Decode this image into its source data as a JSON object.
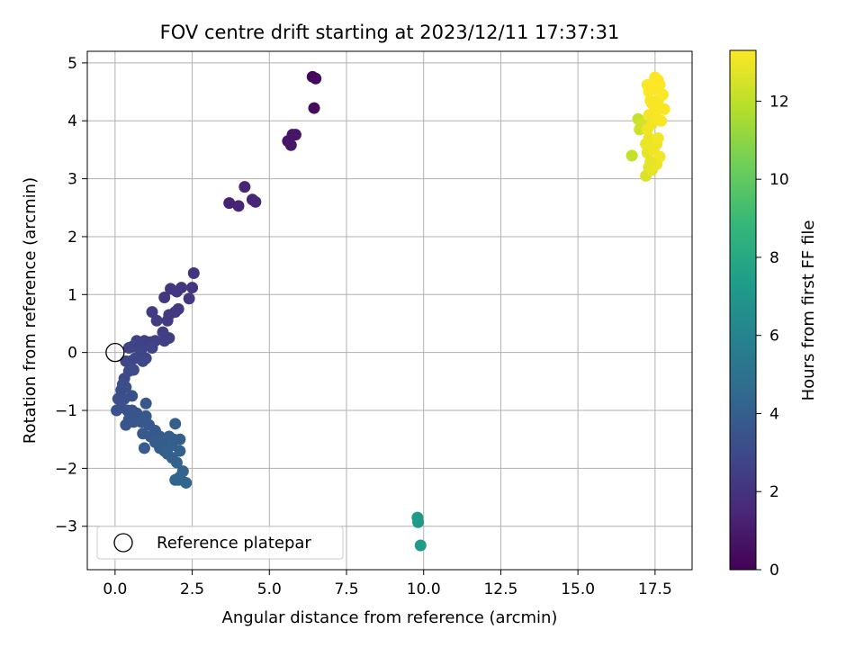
{
  "chart_data": {
    "type": "scatter",
    "title": "FOV centre drift starting at 2023/12/11 17:37:31",
    "xlabel": "Angular distance from reference (arcmin)",
    "ylabel": "Rotation from reference (arcmin)",
    "xlim": [
      -0.9,
      18.7
    ],
    "ylim": [
      -3.75,
      5.2
    ],
    "xticks": [
      0.0,
      2.5,
      5.0,
      7.5,
      10.0,
      12.5,
      15.0,
      17.5
    ],
    "xtick_labels": [
      "0.0",
      "2.5",
      "5.0",
      "7.5",
      "10.0",
      "12.5",
      "15.0",
      "17.5"
    ],
    "yticks": [
      -3,
      -2,
      -1,
      0,
      1,
      2,
      3,
      4,
      5
    ],
    "ytick_labels": [
      "−3",
      "−2",
      "−1",
      "0",
      "1",
      "2",
      "3",
      "4",
      "5"
    ],
    "grid": true,
    "colormap": "viridis",
    "colormap_stops": [
      "#440154",
      "#482878",
      "#3e4989",
      "#31688e",
      "#26828e",
      "#1f9e89",
      "#35b779",
      "#6ece58",
      "#b5de2b",
      "#fde725"
    ],
    "colorbar": {
      "label": "Hours from first FF file",
      "range": [
        0,
        13.3
      ],
      "ticks": [
        0,
        2,
        4,
        6,
        8,
        10,
        12
      ],
      "tick_labels": [
        "0",
        "2",
        "4",
        "6",
        "8",
        "10",
        "12"
      ]
    },
    "legend": {
      "placement": "lower-left",
      "entries": [
        "Reference platepar"
      ]
    },
    "reference_point": {
      "x": 0,
      "y": 0
    },
    "points": [
      {
        "x": 6.4,
        "y": 4.76,
        "c": 0.3
      },
      {
        "x": 6.5,
        "y": 4.73,
        "c": 0.35
      },
      {
        "x": 6.45,
        "y": 4.22,
        "c": 0.4
      },
      {
        "x": 5.6,
        "y": 3.65,
        "c": 0.7
      },
      {
        "x": 5.75,
        "y": 3.76,
        "c": 0.72
      },
      {
        "x": 5.85,
        "y": 3.76,
        "c": 0.75
      },
      {
        "x": 5.7,
        "y": 3.58,
        "c": 0.78
      },
      {
        "x": 3.7,
        "y": 2.58,
        "c": 1.3
      },
      {
        "x": 4.0,
        "y": 2.53,
        "c": 1.35
      },
      {
        "x": 4.2,
        "y": 2.86,
        "c": 1.4
      },
      {
        "x": 4.45,
        "y": 2.64,
        "c": 1.42
      },
      {
        "x": 4.55,
        "y": 2.6,
        "c": 1.45
      },
      {
        "x": 2.55,
        "y": 1.37,
        "c": 2.0
      },
      {
        "x": 2.5,
        "y": 1.12,
        "c": 2.05
      },
      {
        "x": 2.4,
        "y": 0.93,
        "c": 2.1
      },
      {
        "x": 2.15,
        "y": 1.12,
        "c": 2.1
      },
      {
        "x": 2.0,
        "y": 1.05,
        "c": 2.15
      },
      {
        "x": 1.8,
        "y": 1.1,
        "c": 2.2
      },
      {
        "x": 1.6,
        "y": 0.95,
        "c": 2.2
      },
      {
        "x": 2.05,
        "y": 0.75,
        "c": 2.25
      },
      {
        "x": 1.95,
        "y": 0.7,
        "c": 2.3
      },
      {
        "x": 1.75,
        "y": 0.65,
        "c": 2.3
      },
      {
        "x": 1.7,
        "y": 0.55,
        "c": 2.35
      },
      {
        "x": 1.35,
        "y": 0.55,
        "c": 2.4
      },
      {
        "x": 1.2,
        "y": 0.7,
        "c": 2.4
      },
      {
        "x": 1.55,
        "y": 0.35,
        "c": 2.45
      },
      {
        "x": 1.6,
        "y": 0.2,
        "c": 2.5
      },
      {
        "x": 1.75,
        "y": 0.25,
        "c": 2.5
      },
      {
        "x": 1.3,
        "y": 0.2,
        "c": 2.55
      },
      {
        "x": 1.15,
        "y": 0.18,
        "c": 2.6
      },
      {
        "x": 0.95,
        "y": 0.2,
        "c": 2.6
      },
      {
        "x": 0.7,
        "y": 0.2,
        "c": 2.65
      },
      {
        "x": 0.55,
        "y": 0.1,
        "c": 2.7
      },
      {
        "x": 0.45,
        "y": 0.08,
        "c": 2.7
      },
      {
        "x": 0.85,
        "y": 0.05,
        "c": 2.75
      },
      {
        "x": 1.2,
        "y": 0.08,
        "c": 2.75
      },
      {
        "x": 1.0,
        "y": -0.1,
        "c": 2.8
      },
      {
        "x": 0.8,
        "y": -0.05,
        "c": 2.8
      },
      {
        "x": 0.65,
        "y": -0.1,
        "c": 2.85
      },
      {
        "x": 0.5,
        "y": -0.15,
        "c": 2.85
      },
      {
        "x": 0.35,
        "y": -0.15,
        "c": 2.9
      },
      {
        "x": 0.9,
        "y": -0.15,
        "c": 2.9
      },
      {
        "x": 0.6,
        "y": -0.3,
        "c": 3.0
      },
      {
        "x": 0.45,
        "y": -0.32,
        "c": 3.0
      },
      {
        "x": 0.3,
        "y": -0.45,
        "c": 3.1
      },
      {
        "x": 0.25,
        "y": -0.55,
        "c": 3.15
      },
      {
        "x": 0.35,
        "y": -0.6,
        "c": 3.2
      },
      {
        "x": 0.2,
        "y": -0.65,
        "c": 3.2
      },
      {
        "x": 0.1,
        "y": -0.8,
        "c": 3.25
      },
      {
        "x": 0.3,
        "y": -0.8,
        "c": 3.3
      },
      {
        "x": 0.55,
        "y": -0.75,
        "c": 3.3
      },
      {
        "x": 0.2,
        "y": -0.95,
        "c": 3.35
      },
      {
        "x": 0.05,
        "y": -1.0,
        "c": 3.4
      },
      {
        "x": 0.4,
        "y": -1.0,
        "c": 3.4
      },
      {
        "x": 0.55,
        "y": -1.0,
        "c": 3.45
      },
      {
        "x": 0.7,
        "y": -1.05,
        "c": 3.5
      },
      {
        "x": 0.45,
        "y": -1.15,
        "c": 3.5
      },
      {
        "x": 0.6,
        "y": -1.2,
        "c": 3.55
      },
      {
        "x": 0.35,
        "y": -1.25,
        "c": 3.55
      },
      {
        "x": 0.85,
        "y": -1.2,
        "c": 3.6
      },
      {
        "x": 1.0,
        "y": -1.1,
        "c": 3.6
      },
      {
        "x": 1.1,
        "y": -1.25,
        "c": 3.65
      },
      {
        "x": 1.0,
        "y": -0.88,
        "c": 3.65
      },
      {
        "x": 0.9,
        "y": -1.4,
        "c": 3.7
      },
      {
        "x": 1.15,
        "y": -1.45,
        "c": 3.7
      },
      {
        "x": 1.3,
        "y": -1.35,
        "c": 3.75
      },
      {
        "x": 1.45,
        "y": -1.45,
        "c": 3.75
      },
      {
        "x": 1.3,
        "y": -1.55,
        "c": 3.8
      },
      {
        "x": 0.95,
        "y": -1.65,
        "c": 3.8
      },
      {
        "x": 1.55,
        "y": -1.55,
        "c": 3.85
      },
      {
        "x": 1.45,
        "y": -1.65,
        "c": 3.85
      },
      {
        "x": 1.6,
        "y": -1.7,
        "c": 3.9
      },
      {
        "x": 1.75,
        "y": -1.45,
        "c": 3.9
      },
      {
        "x": 1.9,
        "y": -1.5,
        "c": 3.95
      },
      {
        "x": 2.1,
        "y": -1.5,
        "c": 3.95
      },
      {
        "x": 1.95,
        "y": -1.23,
        "c": 4.0
      },
      {
        "x": 1.85,
        "y": -1.6,
        "c": 4.0
      },
      {
        "x": 1.7,
        "y": -1.75,
        "c": 4.05
      },
      {
        "x": 2.1,
        "y": -1.7,
        "c": 4.05
      },
      {
        "x": 1.85,
        "y": -1.82,
        "c": 4.1
      },
      {
        "x": 2.0,
        "y": -1.9,
        "c": 4.15
      },
      {
        "x": 2.2,
        "y": -2.05,
        "c": 4.2
      },
      {
        "x": 2.1,
        "y": -2.15,
        "c": 4.25
      },
      {
        "x": 1.95,
        "y": -2.2,
        "c": 4.3
      },
      {
        "x": 2.3,
        "y": -2.25,
        "c": 4.35
      },
      {
        "x": 2.05,
        "y": -2.2,
        "c": 4.3
      },
      {
        "x": 9.8,
        "y": -2.85,
        "c": 7.2
      },
      {
        "x": 9.82,
        "y": -2.93,
        "c": 7.25
      },
      {
        "x": 9.9,
        "y": -3.33,
        "c": 7.3
      },
      {
        "x": 16.75,
        "y": 3.4,
        "c": 12.1
      },
      {
        "x": 16.95,
        "y": 4.03,
        "c": 12.2
      },
      {
        "x": 17.0,
        "y": 3.85,
        "c": 12.3
      },
      {
        "x": 17.05,
        "y": 3.95,
        "c": 12.4
      },
      {
        "x": 17.2,
        "y": 3.05,
        "c": 12.6
      },
      {
        "x": 17.3,
        "y": 3.2,
        "c": 12.7
      },
      {
        "x": 17.4,
        "y": 3.15,
        "c": 12.8
      },
      {
        "x": 17.25,
        "y": 3.45,
        "c": 12.8
      },
      {
        "x": 17.2,
        "y": 3.6,
        "c": 12.9
      },
      {
        "x": 17.3,
        "y": 3.7,
        "c": 12.95
      },
      {
        "x": 17.45,
        "y": 3.5,
        "c": 13.0
      },
      {
        "x": 17.55,
        "y": 3.6,
        "c": 13.0
      },
      {
        "x": 17.25,
        "y": 3.85,
        "c": 13.05
      },
      {
        "x": 17.4,
        "y": 3.95,
        "c": 13.05
      },
      {
        "x": 17.6,
        "y": 3.7,
        "c": 13.1
      },
      {
        "x": 17.65,
        "y": 3.38,
        "c": 13.1
      },
      {
        "x": 17.3,
        "y": 4.1,
        "c": 13.1
      },
      {
        "x": 17.55,
        "y": 4.05,
        "c": 13.15
      },
      {
        "x": 17.7,
        "y": 4.0,
        "c": 13.15
      },
      {
        "x": 17.5,
        "y": 4.2,
        "c": 13.2
      },
      {
        "x": 17.8,
        "y": 4.2,
        "c": 13.2
      },
      {
        "x": 17.35,
        "y": 4.35,
        "c": 13.2
      },
      {
        "x": 17.6,
        "y": 4.35,
        "c": 13.2
      },
      {
        "x": 17.75,
        "y": 4.45,
        "c": 13.25
      },
      {
        "x": 17.3,
        "y": 4.5,
        "c": 13.25
      },
      {
        "x": 17.5,
        "y": 4.55,
        "c": 13.25
      },
      {
        "x": 17.25,
        "y": 4.62,
        "c": 13.25
      },
      {
        "x": 17.65,
        "y": 4.62,
        "c": 13.3
      },
      {
        "x": 17.5,
        "y": 4.75,
        "c": 13.3
      },
      {
        "x": 17.6,
        "y": 4.7,
        "c": 13.3
      },
      {
        "x": 17.4,
        "y": 4.3,
        "c": 13.2
      },
      {
        "x": 17.55,
        "y": 3.25,
        "c": 12.9
      },
      {
        "x": 17.35,
        "y": 3.3,
        "c": 12.85
      }
    ]
  }
}
